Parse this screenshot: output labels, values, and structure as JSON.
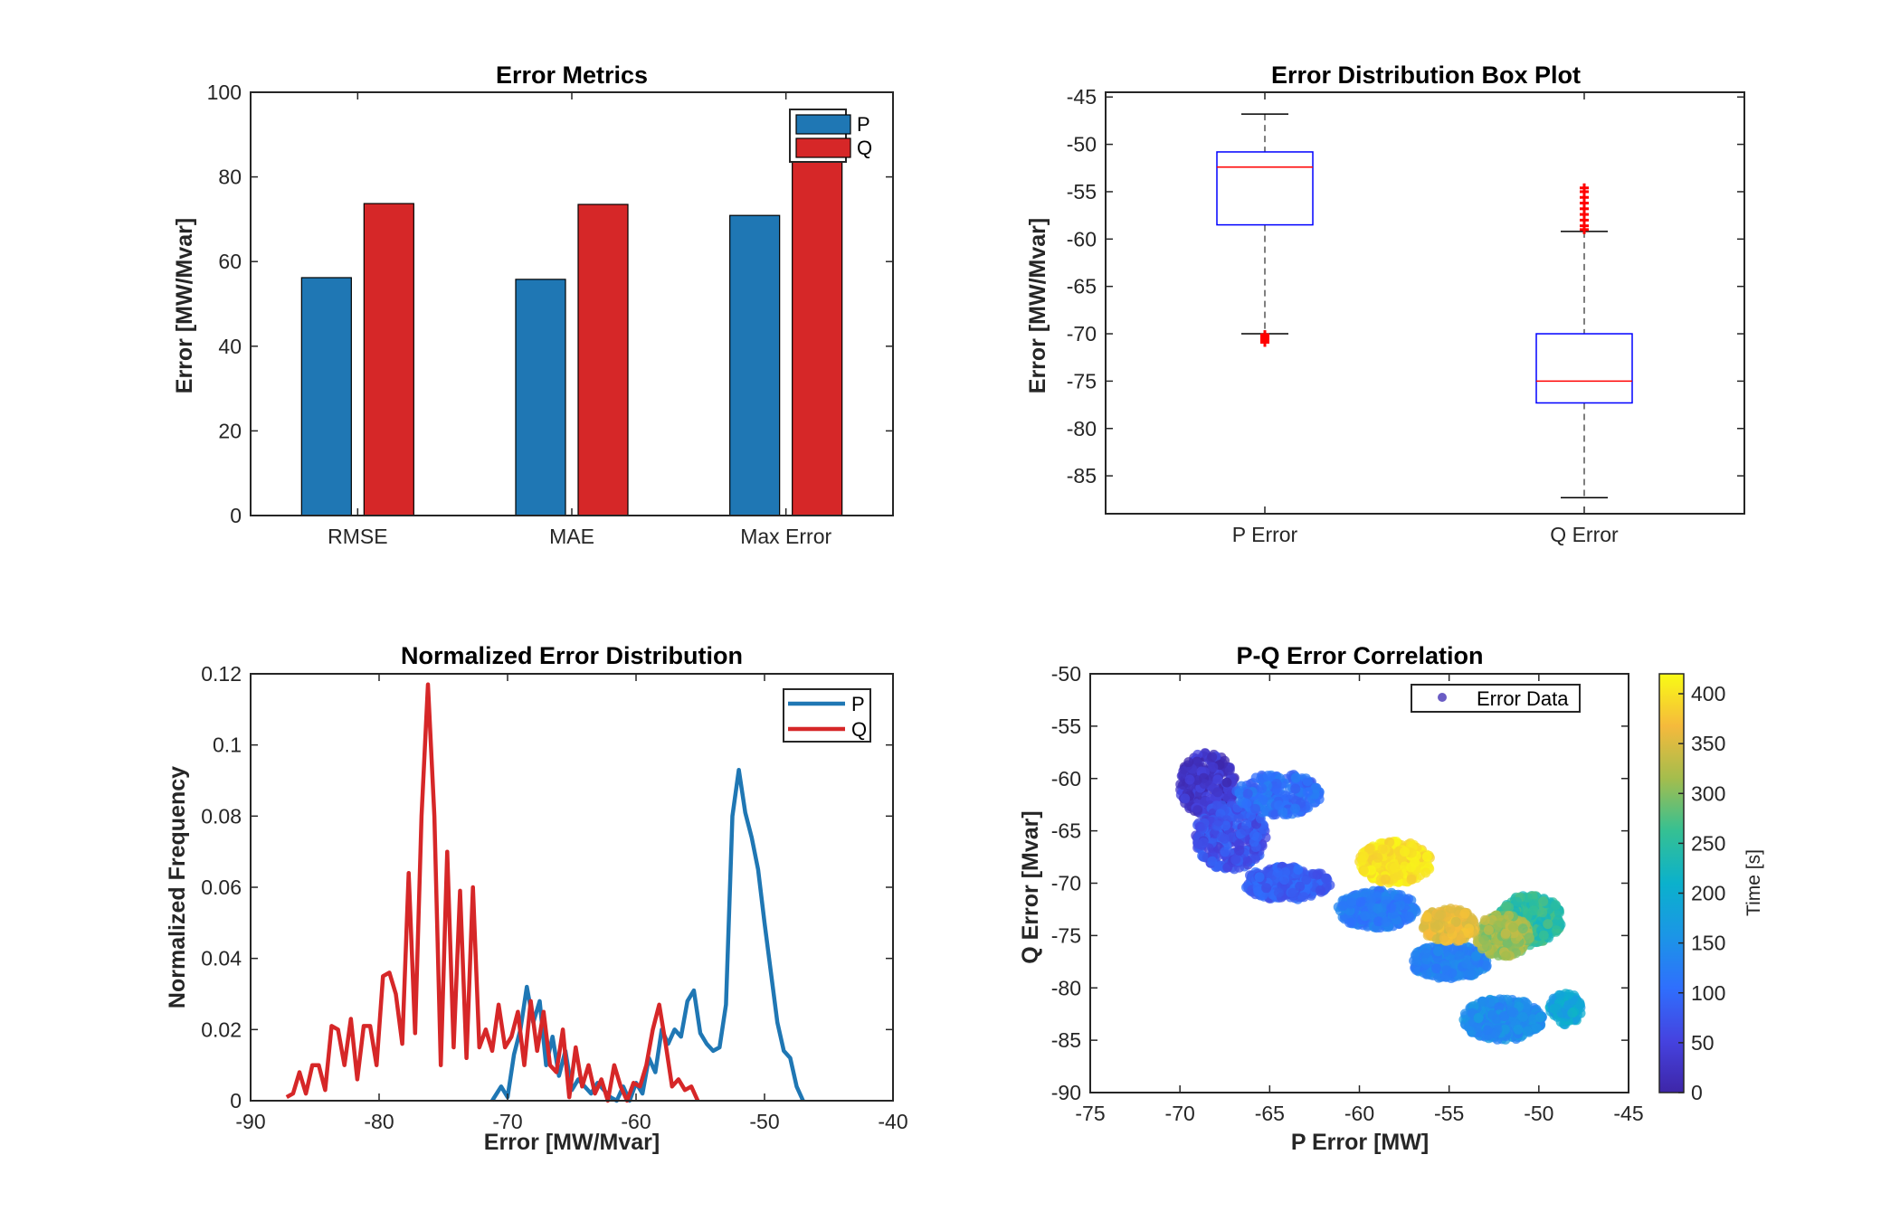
{
  "chart_data": [
    {
      "type": "bar",
      "title": "Error Metrics",
      "xlabel": "",
      "ylabel": "Error [MW/Mvar]",
      "categories": [
        "RMSE",
        "MAE",
        "Max Error"
      ],
      "series": [
        {
          "name": "P",
          "values": [
            56.2,
            55.8,
            70.9
          ],
          "color": "#1f77b4"
        },
        {
          "name": "Q",
          "values": [
            73.7,
            73.5,
            87.5
          ],
          "color": "#d62728"
        }
      ],
      "ylim": [
        0,
        100
      ],
      "yticks": [
        "0",
        "20",
        "40",
        "60",
        "80",
        "100"
      ],
      "legend": "top-right"
    },
    {
      "type": "box",
      "title": "Error Distribution Box Plot",
      "xlabel": "",
      "ylabel": "Error [MW/Mvar]",
      "categories": [
        "P Error",
        "Q Error"
      ],
      "boxes": [
        {
          "label": "P Error",
          "whisker_low": -70.0,
          "q1": -58.5,
          "median": -52.4,
          "q3": -50.8,
          "whisker_high": -46.8,
          "outliers": [
            -70.1,
            -70.3,
            -70.5,
            -70.7,
            -70.9
          ]
        },
        {
          "label": "Q Error",
          "whisker_low": -87.3,
          "q1": -77.3,
          "median": -75.0,
          "q3": -70.0,
          "whisker_high": -59.2,
          "outliers": [
            -59.0,
            -58.6,
            -58.0,
            -57.4,
            -56.8,
            -56.2,
            -55.6,
            -55.0,
            -54.6
          ]
        }
      ],
      "ylim": [
        -89,
        -44.5
      ],
      "yticks": [
        "-85",
        "-80",
        "-75",
        "-70",
        "-65",
        "-60",
        "-55",
        "-50",
        "-45"
      ],
      "box_color": "#0000ff",
      "median_color": "#ff0000",
      "outlier_color": "#ff0000"
    },
    {
      "type": "line",
      "title": "Normalized Error Distribution",
      "xlabel": "Error [MW/Mvar]",
      "ylabel": "Normalized Frequency",
      "xlim": [
        -90,
        -40
      ],
      "ylim": [
        0,
        0.12
      ],
      "xticks": [
        "-90",
        "-80",
        "-70",
        "-60",
        "-50",
        "-40"
      ],
      "yticks": [
        "0",
        "0.02",
        "0.04",
        "0.06",
        "0.08",
        "0.1",
        "0.12"
      ],
      "legend": "top-right",
      "series": [
        {
          "name": "P",
          "color": "#1f77b4",
          "x": [
            -71.2,
            -70.5,
            -70.0,
            -69.5,
            -69.0,
            -68.5,
            -68.0,
            -67.5,
            -67.0,
            -66.5,
            -66.0,
            -65.5,
            -65.0,
            -64.5,
            -64.0,
            -63.5,
            -63.0,
            -62.5,
            -62.0,
            -61.5,
            -61.0,
            -60.5,
            -60.0,
            -59.5,
            -59.0,
            -58.5,
            -58.0,
            -57.5,
            -57.0,
            -56.5,
            -56.0,
            -55.5,
            -55.0,
            -54.5,
            -54.0,
            -53.5,
            -53.0,
            -52.5,
            -52.0,
            -51.5,
            -51.0,
            -50.5,
            -50.0,
            -49.5,
            -49.0,
            -48.5,
            -48.0,
            -47.5,
            -47.0
          ],
          "y": [
            0.0,
            0.004,
            0.001,
            0.013,
            0.02,
            0.032,
            0.022,
            0.028,
            0.01,
            0.018,
            0.007,
            0.014,
            0.003,
            0.006,
            0.004,
            0.002,
            0.005,
            0.003,
            0.001,
            0.0,
            0.004,
            0.0,
            0.005,
            0.002,
            0.012,
            0.008,
            0.02,
            0.016,
            0.02,
            0.018,
            0.028,
            0.031,
            0.019,
            0.016,
            0.014,
            0.015,
            0.027,
            0.08,
            0.093,
            0.081,
            0.074,
            0.065,
            0.05,
            0.036,
            0.022,
            0.014,
            0.012,
            0.004,
            0.0
          ]
        },
        {
          "name": "Q",
          "color": "#d62728",
          "x": [
            -87.2,
            -86.7,
            -86.2,
            -85.7,
            -85.2,
            -84.7,
            -84.2,
            -83.7,
            -83.2,
            -82.7,
            -82.2,
            -81.7,
            -81.2,
            -80.7,
            -80.2,
            -79.7,
            -79.2,
            -78.7,
            -78.2,
            -77.7,
            -77.2,
            -76.7,
            -76.2,
            -75.7,
            -75.2,
            -74.7,
            -74.2,
            -73.7,
            -73.2,
            -72.7,
            -72.2,
            -71.7,
            -71.2,
            -70.7,
            -70.2,
            -69.7,
            -69.2,
            -68.7,
            -68.2,
            -67.7,
            -67.2,
            -66.7,
            -66.2,
            -65.7,
            -65.2,
            -64.7,
            -64.2,
            -63.7,
            -63.2,
            -62.7,
            -62.2,
            -61.7,
            -61.2,
            -60.7,
            -60.2,
            -59.7,
            -59.2,
            -58.7,
            -58.2,
            -57.7,
            -57.2,
            -56.7,
            -56.2,
            -55.7,
            -55.2
          ],
          "y": [
            0.001,
            0.002,
            0.008,
            0.002,
            0.01,
            0.01,
            0.003,
            0.021,
            0.02,
            0.01,
            0.023,
            0.006,
            0.021,
            0.021,
            0.01,
            0.035,
            0.036,
            0.03,
            0.016,
            0.064,
            0.019,
            0.08,
            0.117,
            0.08,
            0.01,
            0.07,
            0.015,
            0.059,
            0.012,
            0.06,
            0.015,
            0.02,
            0.014,
            0.027,
            0.015,
            0.018,
            0.025,
            0.01,
            0.028,
            0.014,
            0.025,
            0.01,
            0.008,
            0.02,
            0.001,
            0.015,
            0.004,
            0.01,
            0.002,
            0.006,
            0.0,
            0.01,
            0.004,
            0.0,
            0.005,
            0.004,
            0.01,
            0.02,
            0.027,
            0.016,
            0.004,
            0.006,
            0.003,
            0.004,
            0.0
          ]
        }
      ]
    },
    {
      "type": "scatter",
      "title": "P-Q Error Correlation",
      "xlabel": "P Error [MW]",
      "ylabel": "Q Error [Mvar]",
      "xlim": [
        -75,
        -45
      ],
      "ylim": [
        -90,
        -50
      ],
      "xticks": [
        "-75",
        "-70",
        "-65",
        "-60",
        "-55",
        "-50",
        "-45"
      ],
      "yticks": [
        "-90",
        "-85",
        "-80",
        "-75",
        "-70",
        "-65",
        "-60",
        "-55",
        "-50"
      ],
      "legend": "top-right",
      "series": [
        {
          "name": "Error Data"
        }
      ],
      "colorbar": {
        "label": "Time [s]",
        "range": [
          0,
          420
        ],
        "ticks": [
          "0",
          "50",
          "100",
          "150",
          "200",
          "250",
          "300",
          "350",
          "400"
        ],
        "colormap": "parula"
      },
      "clusters": [
        {
          "time_range": [
            0,
            60
          ],
          "center": [
            -68.5,
            -60.5
          ],
          "spread": [
            1.6,
            3.0
          ],
          "n": 260
        },
        {
          "time_range": [
            40,
            100
          ],
          "center": [
            -67.2,
            -65.5
          ],
          "spread": [
            2.0,
            3.2
          ],
          "n": 320
        },
        {
          "time_range": [
            60,
            110
          ],
          "center": [
            -64.0,
            -70.0
          ],
          "spread": [
            2.4,
            1.6
          ],
          "n": 300
        },
        {
          "time_range": [
            80,
            130
          ],
          "center": [
            -64.5,
            -61.5
          ],
          "spread": [
            2.4,
            2.0
          ],
          "n": 220
        },
        {
          "time_range": [
            100,
            140
          ],
          "center": [
            -59.0,
            -72.5
          ],
          "spread": [
            2.2,
            1.8
          ],
          "n": 300
        },
        {
          "time_range": [
            110,
            150
          ],
          "center": [
            -55.0,
            -77.5
          ],
          "spread": [
            2.2,
            1.6
          ],
          "n": 260
        },
        {
          "time_range": [
            120,
            170
          ],
          "center": [
            -52.0,
            -83.0
          ],
          "spread": [
            2.2,
            2.0
          ],
          "n": 380
        },
        {
          "time_range": [
            160,
            220
          ],
          "center": [
            -48.5,
            -82.0
          ],
          "spread": [
            0.9,
            1.5
          ],
          "n": 120
        },
        {
          "time_range": [
            220,
            280
          ],
          "center": [
            -50.5,
            -73.5
          ],
          "spread": [
            1.8,
            2.4
          ],
          "n": 340
        },
        {
          "time_range": [
            280,
            340
          ],
          "center": [
            -52.0,
            -75.0
          ],
          "spread": [
            1.5,
            2.0
          ],
          "n": 280
        },
        {
          "time_range": [
            340,
            380
          ],
          "center": [
            -55.0,
            -74.0
          ],
          "spread": [
            1.5,
            1.6
          ],
          "n": 230
        },
        {
          "time_range": [
            380,
            420
          ],
          "center": [
            -58.0,
            -68.0
          ],
          "spread": [
            2.0,
            2.0
          ],
          "n": 330
        }
      ]
    }
  ]
}
